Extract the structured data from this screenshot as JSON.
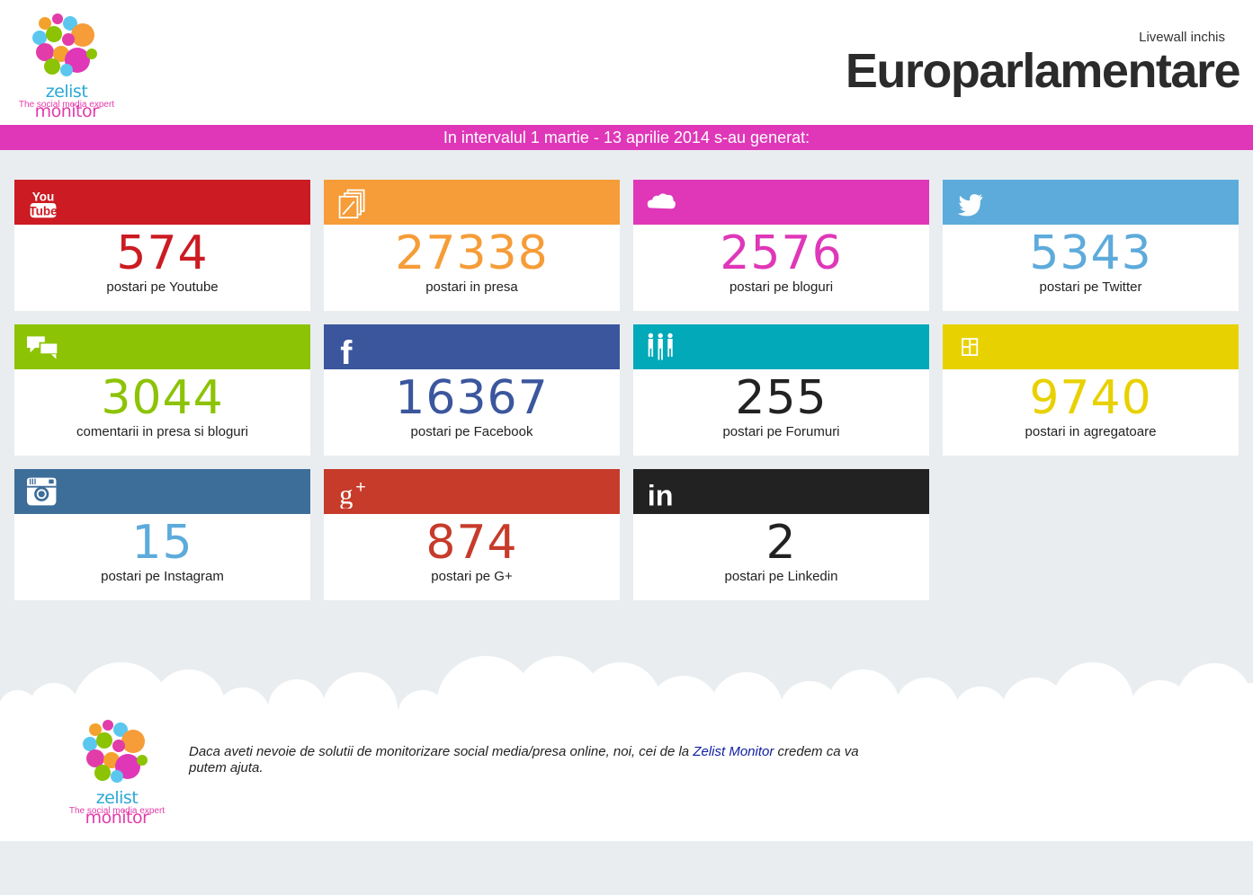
{
  "header": {
    "logo": {
      "brand_a": "zelist ",
      "brand_b": "monitor",
      "tagline": "The social media expert"
    },
    "status": "Livewall inchis",
    "title": "Europarlamentare"
  },
  "banner": "In intervalul 1 martie - 13 aprilie 2014 s-au generat:",
  "cards": [
    {
      "value": "574",
      "label": "postari pe Youtube",
      "color": "#cc1b22",
      "icon": "youtube-icon"
    },
    {
      "value": "27338",
      "label": "postari in presa",
      "color": "#f69c38",
      "icon": "press-icon"
    },
    {
      "value": "2576",
      "label": "postari pe bloguri",
      "color": "#df37b8",
      "icon": "blog-cloud-icon"
    },
    {
      "value": "5343",
      "label": "postari pe Twitter",
      "color": "#5dabdb",
      "icon": "twitter-icon"
    },
    {
      "value": "3044",
      "label": "comentarii in presa si bloguri",
      "color": "#8cc304",
      "icon": "comments-icon"
    },
    {
      "value": "16367",
      "label": "postari pe Facebook",
      "color": "#3b569d",
      "icon": "facebook-icon"
    },
    {
      "value": "255",
      "label": "postari pe Forumuri",
      "color": "#02a9b8",
      "icon": "forum-icon"
    },
    {
      "value": "9740",
      "label": "postari in agregatoare",
      "color": "#e8d100",
      "icon": "aggregator-icon"
    },
    {
      "value": "15",
      "label": "postari pe Instagram",
      "color": "#3d6d99",
      "icon": "instagram-icon"
    },
    {
      "value": "874",
      "label": "postari pe G+",
      "color": "#c73b2a",
      "icon": "google-plus-icon"
    },
    {
      "value": "2",
      "label": "postari pe Linkedin",
      "color": "#222222",
      "icon": "linkedin-icon"
    }
  ],
  "value_colors": {
    "youtube": "#cc1b22",
    "presa": "#f69c38",
    "bloguri": "#df37b8",
    "twitter": "#5dabdb",
    "comentarii": "#8cc304",
    "facebook": "#3b569d",
    "forumuri": "#222222",
    "agregatoare": "#e8d100",
    "instagram": "#5dabdb",
    "gplus": "#c73b2a",
    "linkedin": "#222222"
  },
  "footer": {
    "text_before": "Daca aveti nevoie de solutii de monitorizare social media/presa online, noi, cei de la ",
    "link": "Zelist Monitor",
    "text_after": " credem ca va putem ajuta."
  }
}
